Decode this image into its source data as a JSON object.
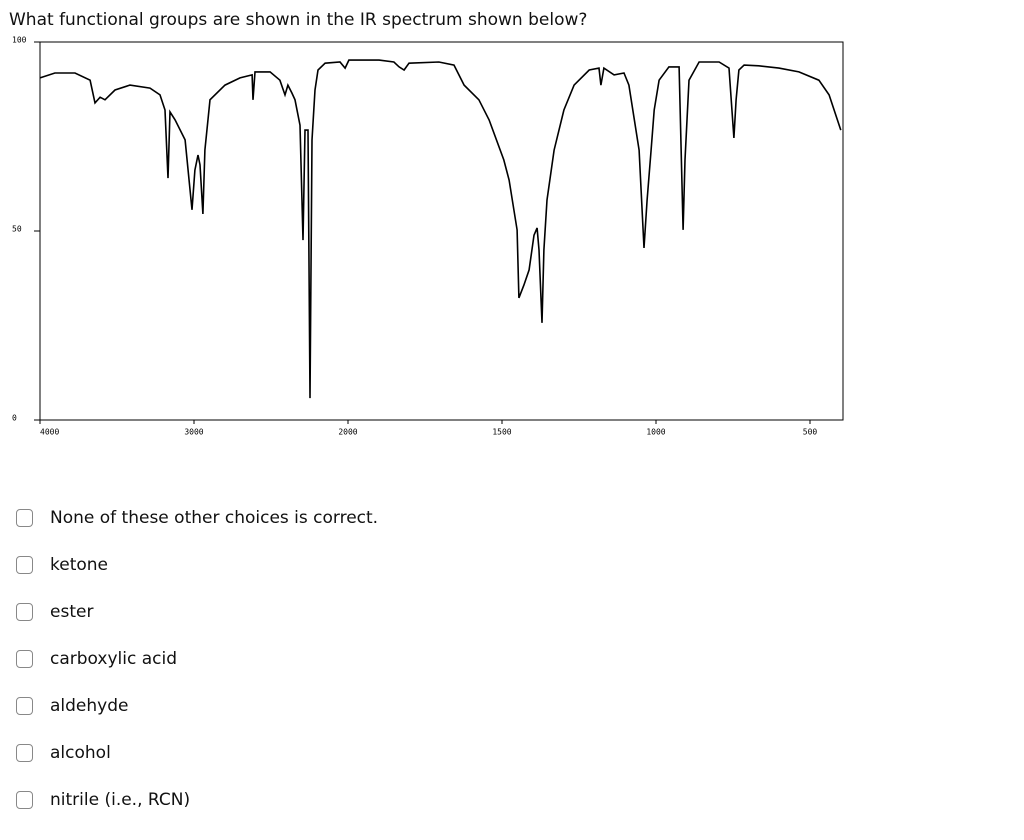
{
  "question": "What functional groups are shown in the IR spectrum shown below?",
  "chart_data": {
    "type": "line",
    "x": [
      4000,
      3903,
      3773,
      3675,
      3643,
      3610,
      3578,
      3513,
      3416,
      3286,
      3221,
      3188,
      3169,
      3156,
      3123,
      3058,
      3013,
      2994,
      2974,
      2961,
      2942,
      2929,
      2896,
      2799,
      2701,
      2623,
      2617,
      2604,
      2506,
      2442,
      2409,
      2390,
      2364,
      2344,
      2312,
      2292,
      2279,
      2260,
      2247,
      2234,
      2214,
      2195,
      2149,
      2052,
      2019,
      1997,
      1899,
      1851,
      1834,
      1818,
      1802,
      1705,
      1656,
      1623,
      1575,
      1542,
      1494,
      1477,
      1451,
      1445,
      1429,
      1412,
      1396,
      1386,
      1380,
      1370,
      1364,
      1354,
      1331,
      1299,
      1266,
      1217,
      1185,
      1179,
      1169,
      1136,
      1104,
      1088,
      1055,
      1039,
      1029,
      1016,
      1006,
      990,
      958,
      925,
      912,
      906,
      893,
      860,
      795,
      763,
      747,
      740,
      731,
      714,
      666,
      601,
      536,
      471,
      438,
      400
    ],
    "values": [
      90.5,
      91.8,
      91.8,
      89.9,
      83.9,
      85.4,
      84.7,
      87.3,
      88.6,
      87.8,
      86.0,
      82.0,
      64.0,
      81.5,
      79.4,
      74.1,
      55.6,
      66.1,
      70.1,
      67.5,
      54.5,
      71.4,
      84.7,
      88.6,
      90.5,
      91.3,
      84.7,
      92.1,
      92.1,
      89.9,
      86.0,
      88.6,
      86.5,
      84.7,
      78.0,
      47.6,
      76.7,
      76.7,
      5.8,
      74.1,
      87.3,
      92.6,
      94.4,
      94.7,
      93.1,
      95.2,
      95.2,
      94.7,
      93.4,
      92.6,
      94.4,
      94.7,
      93.9,
      88.6,
      84.7,
      79.4,
      68.8,
      63.5,
      50.3,
      32.3,
      35.7,
      39.7,
      48.9,
      50.8,
      45.0,
      25.7,
      45.0,
      58.2,
      71.4,
      82.0,
      88.6,
      92.6,
      93.1,
      88.6,
      93.1,
      91.3,
      91.8,
      88.6,
      71.4,
      45.5,
      58.2,
      71.4,
      82.0,
      89.9,
      93.4,
      93.4,
      50.3,
      68.8,
      89.9,
      94.7,
      94.7,
      93.1,
      74.6,
      84.7,
      92.6,
      93.9,
      93.7,
      93.1,
      92.1,
      89.9,
      86.0,
      76.7
    ],
    "color": "#000000",
    "xlim": [
      4000,
      400
    ],
    "xticks": [
      4000,
      3000,
      2000,
      1500,
      1000,
      500
    ],
    "ylim": [
      0,
      100
    ],
    "yticks": [
      0,
      50,
      100
    ]
  },
  "options": [
    "None of these other choices is correct.",
    "ketone",
    "ester",
    "carboxylic acid",
    "aldehyde",
    "alcohol",
    "nitrile (i.e., RCN)"
  ]
}
